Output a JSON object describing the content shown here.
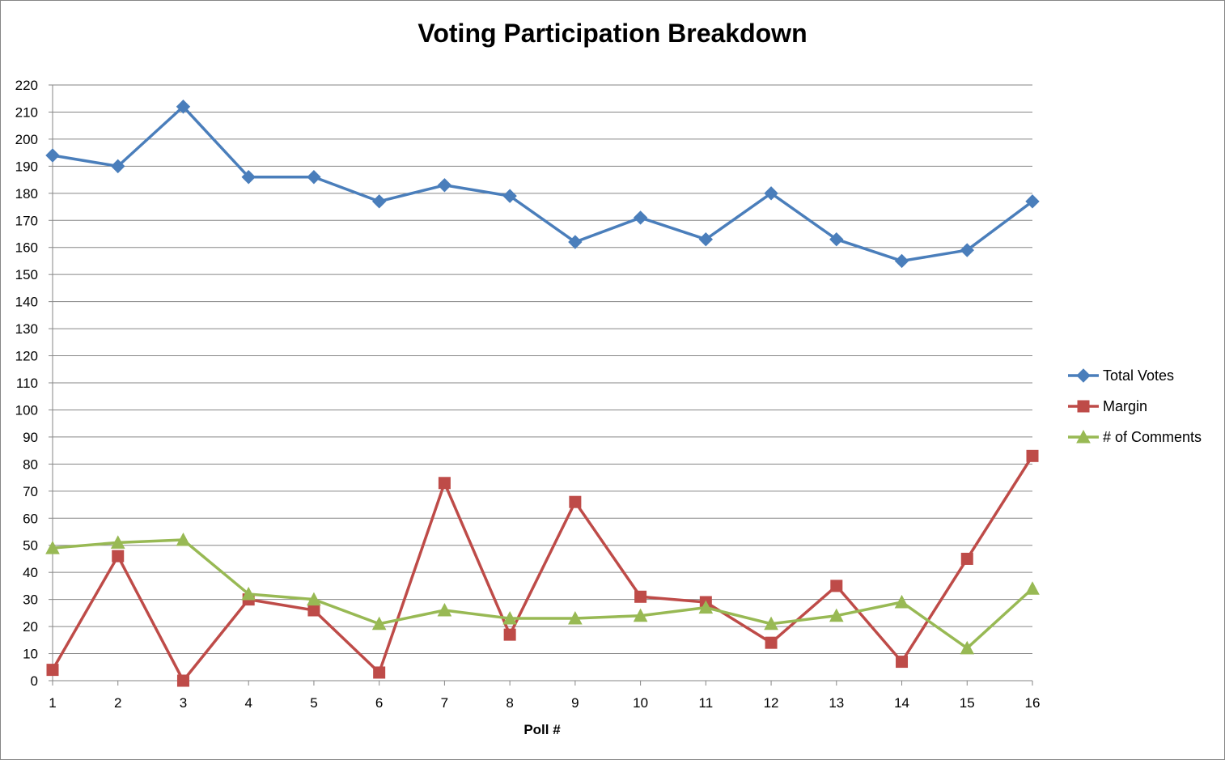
{
  "chart_data": {
    "type": "line",
    "title": "Voting Participation Breakdown",
    "xlabel": "Poll #",
    "ylabel": "",
    "x": [
      1,
      2,
      3,
      4,
      5,
      6,
      7,
      8,
      9,
      10,
      11,
      12,
      13,
      14,
      15,
      16
    ],
    "ylim": [
      0,
      220
    ],
    "yticks": [
      0,
      10,
      20,
      30,
      40,
      50,
      60,
      70,
      80,
      90,
      100,
      110,
      120,
      130,
      140,
      150,
      160,
      170,
      180,
      190,
      200,
      210,
      220
    ],
    "grid": true,
    "legend_position": "right",
    "series": [
      {
        "name": "Total Votes",
        "color": "#4A7EBB",
        "marker": "diamond",
        "values": [
          194,
          190,
          212,
          186,
          186,
          177,
          183,
          179,
          162,
          171,
          163,
          180,
          163,
          155,
          159,
          177
        ]
      },
      {
        "name": "Margin",
        "color": "#BE4B48",
        "marker": "square",
        "values": [
          4,
          46,
          0,
          30,
          26,
          3,
          73,
          17,
          66,
          31,
          29,
          14,
          35,
          7,
          45,
          83
        ]
      },
      {
        "name": "# of Comments",
        "color": "#98B954",
        "marker": "triangle",
        "values": [
          49,
          51,
          52,
          32,
          30,
          21,
          26,
          23,
          23,
          24,
          27,
          21,
          24,
          29,
          12,
          34
        ]
      }
    ]
  }
}
